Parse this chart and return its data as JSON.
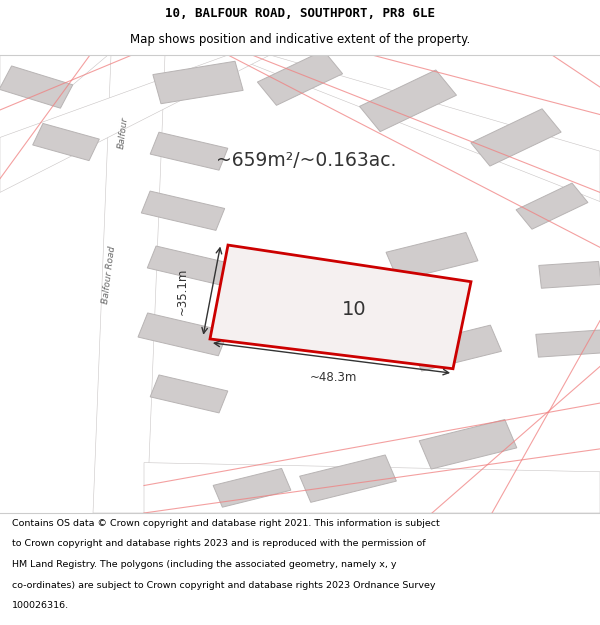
{
  "title_line1": "10, BALFOUR ROAD, SOUTHPORT, PR8 6LE",
  "title_line2": "Map shows position and indicative extent of the property.",
  "footer_lines": [
    "Contains OS data © Crown copyright and database right 2021. This information is subject",
    "to Crown copyright and database rights 2023 and is reproduced with the permission of",
    "HM Land Registry. The polygons (including the associated geometry, namely x, y",
    "co-ordinates) are subject to Crown copyright and database rights 2023 Ordnance Survey",
    "100026316."
  ],
  "area_label": "~659m²/~0.163ac.",
  "property_number": "10",
  "dim_width": "~48.3m",
  "dim_height": "~35.1m",
  "road_label": "Balfour Road",
  "road_label2": "Balfour",
  "map_bg": "#e8e6e6",
  "property_fill": "#f5f0f0",
  "property_edge": "#cc0000",
  "road_color": "#ffffff",
  "building_fill": "#d0cccc",
  "building_edge": "#b8b4b4",
  "pink_line": "#f08080",
  "dim_color": "#333333",
  "text_color": "#333333",
  "road_text_color": "#666666"
}
